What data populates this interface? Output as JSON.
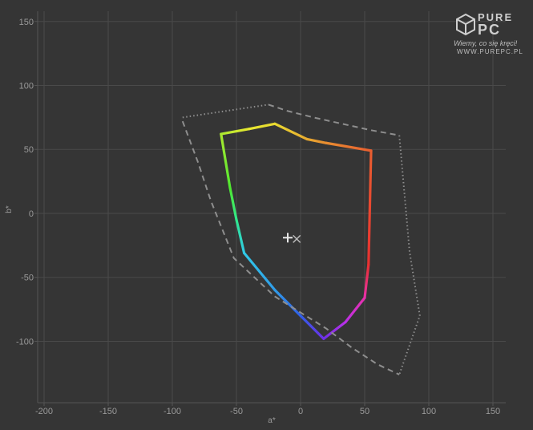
{
  "chart_data": {
    "type": "scatter",
    "title": "",
    "xlabel": "a*",
    "ylabel": "b*",
    "xlim": [
      -205,
      160
    ],
    "ylim": [
      -148,
      158
    ],
    "xticks": [
      -200,
      -150,
      -100,
      -50,
      0,
      50,
      100,
      150
    ],
    "yticks": [
      -100,
      -50,
      0,
      50,
      100,
      150
    ],
    "grid": true,
    "series": [
      {
        "style": "solid-gradient",
        "points": [
          [
            -20,
            70
          ],
          [
            5,
            58
          ],
          [
            20,
            55
          ],
          [
            55,
            49
          ],
          [
            53,
            -40
          ],
          [
            50,
            -66
          ],
          [
            35,
            -85
          ],
          [
            18,
            -98
          ],
          [
            0,
            -80
          ],
          [
            -20,
            -60
          ],
          [
            -44,
            -31
          ],
          [
            -50,
            -5
          ],
          [
            -55,
            20
          ],
          [
            -62,
            62
          ],
          [
            -40,
            66
          ]
        ]
      },
      {
        "style": "dashed",
        "points": [
          [
            -25,
            85
          ],
          [
            -10,
            80
          ],
          [
            10,
            75
          ],
          [
            55,
            65
          ],
          [
            77,
            61
          ]
        ]
      },
      {
        "style": "dashed",
        "points": [
          [
            -92,
            72
          ],
          [
            -80,
            40
          ],
          [
            -70,
            10
          ],
          [
            -60,
            -15
          ],
          [
            -52,
            -35
          ],
          [
            -20,
            -65
          ],
          [
            20,
            -90
          ],
          [
            40,
            -105
          ],
          [
            60,
            -118
          ],
          [
            77,
            -126
          ]
        ]
      },
      {
        "style": "dotted",
        "points": [
          [
            -92,
            75
          ],
          [
            -25,
            85
          ]
        ]
      },
      {
        "style": "dotted",
        "points": [
          [
            77,
            61
          ],
          [
            85,
            -30
          ],
          [
            93,
            -80
          ],
          [
            77,
            -126
          ]
        ]
      }
    ],
    "markers": [
      {
        "symbol": "plus",
        "x": -10,
        "y": -19
      },
      {
        "symbol": "x",
        "x": -3,
        "y": -20
      }
    ]
  },
  "logo": {
    "word1": "PURE",
    "word2": "PC",
    "tagline": "Wiemy, co się kręci!",
    "url": "WWW.PUREPC.PL",
    "icon": "cube-icon"
  },
  "colors": {
    "background": "#353535",
    "plot_background": "#353535",
    "grid": "#4a4a4a",
    "axis": "#555555",
    "tick_text": "#9a9a9a",
    "reference": "#8e8e8e",
    "marker": "#e8e8e8"
  }
}
